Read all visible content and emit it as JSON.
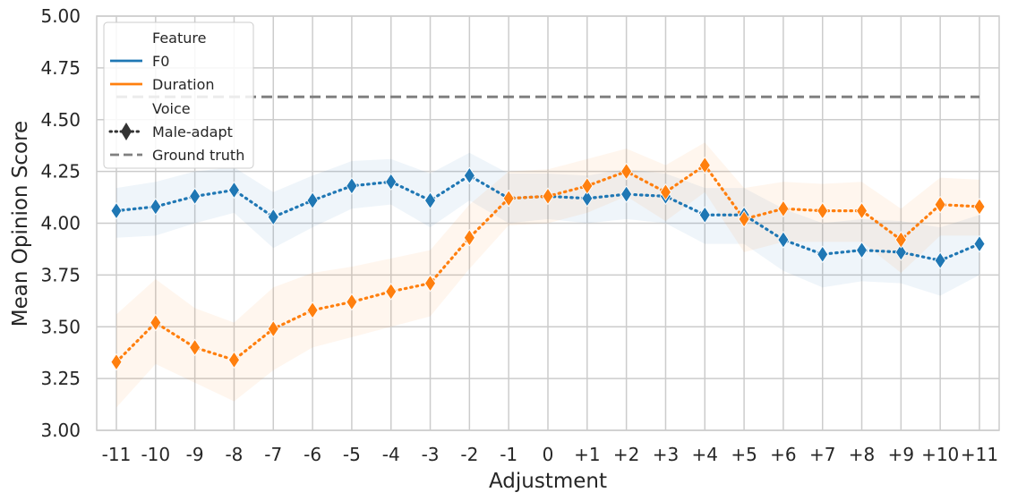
{
  "chart_data": {
    "type": "line",
    "xlabel": "Adjustment",
    "ylabel": "Mean Opinion Score",
    "categories": [
      "-11",
      "-10",
      "-9",
      "-8",
      "-7",
      "-6",
      "-5",
      "-4",
      "-3",
      "-2",
      "-1",
      "0",
      "+1",
      "+2",
      "+3",
      "+4",
      "+5",
      "+6",
      "+7",
      "+8",
      "+9",
      "+10",
      "+11"
    ],
    "ylim": [
      3.0,
      5.0
    ],
    "yticks": [
      "3.00",
      "3.25",
      "3.50",
      "3.75",
      "4.00",
      "4.25",
      "4.50",
      "4.75",
      "5.00"
    ],
    "grid": true,
    "legend_position": "top-left",
    "legend": {
      "feature_title": "Feature",
      "voice_title": "Voice",
      "f0_label": "F0",
      "duration_label": "Duration",
      "male_adapt_label": "Male-adapt",
      "ground_truth_label": "Ground truth"
    },
    "series": [
      {
        "name": "F0",
        "color": "#1f77b4",
        "values": [
          4.06,
          4.08,
          4.13,
          4.16,
          4.03,
          4.11,
          4.18,
          4.2,
          4.11,
          4.23,
          4.12,
          4.13,
          4.12,
          4.14,
          4.13,
          4.04,
          4.04,
          3.92,
          3.85,
          3.87,
          3.86,
          3.82,
          3.9
        ],
        "ci_lower": [
          3.93,
          3.94,
          4.0,
          4.05,
          3.88,
          3.98,
          4.07,
          4.09,
          3.98,
          4.11,
          4.0,
          4.02,
          4.0,
          4.02,
          4.0,
          3.9,
          3.9,
          3.77,
          3.69,
          3.72,
          3.71,
          3.65,
          3.75
        ],
        "ci_upper": [
          4.17,
          4.2,
          4.25,
          4.27,
          4.15,
          4.23,
          4.3,
          4.31,
          4.24,
          4.34,
          4.24,
          4.24,
          4.23,
          4.26,
          4.24,
          4.17,
          4.17,
          4.07,
          4.0,
          4.02,
          4.01,
          3.98,
          4.04
        ],
        "linestyle": "dotted",
        "marker": "diamond"
      },
      {
        "name": "Duration",
        "color": "#ff7f0e",
        "values": [
          3.33,
          3.52,
          3.4,
          3.34,
          3.49,
          3.58,
          3.62,
          3.67,
          3.71,
          3.93,
          4.12,
          4.13,
          4.18,
          4.25,
          4.15,
          4.28,
          4.02,
          4.07,
          4.06,
          4.06,
          3.92,
          4.09,
          4.08
        ],
        "ci_lower": [
          3.11,
          3.32,
          3.23,
          3.14,
          3.29,
          3.4,
          3.45,
          3.5,
          3.55,
          3.78,
          3.99,
          4.0,
          4.05,
          4.13,
          4.01,
          4.15,
          3.86,
          3.91,
          3.91,
          3.91,
          3.76,
          3.94,
          3.94
        ],
        "ci_upper": [
          3.56,
          3.73,
          3.59,
          3.52,
          3.69,
          3.76,
          3.79,
          3.83,
          3.87,
          4.09,
          4.25,
          4.26,
          4.31,
          4.36,
          4.28,
          4.39,
          4.17,
          4.2,
          4.19,
          4.2,
          4.07,
          4.22,
          4.21
        ],
        "linestyle": "dotted",
        "marker": "diamond"
      }
    ],
    "reference_line": {
      "name": "Ground truth",
      "value": 4.61,
      "color": "#808080",
      "linestyle": "dashed"
    }
  }
}
